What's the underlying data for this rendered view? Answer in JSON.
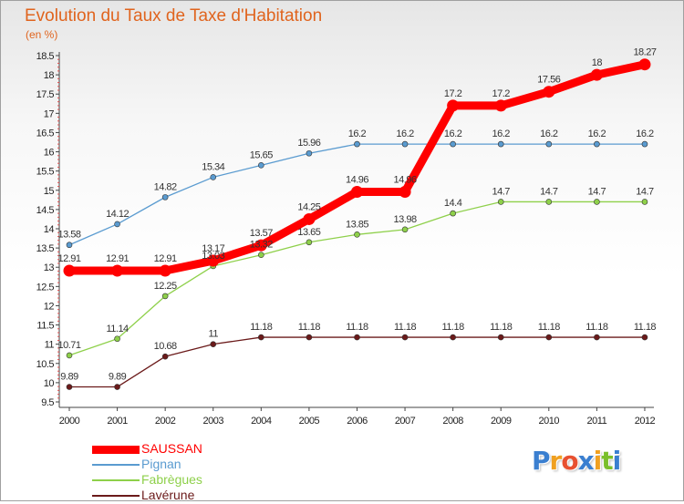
{
  "header": {
    "title": "Evolution du Taux de Taxe d'Habitation",
    "unit": "(en %)"
  },
  "logo": {
    "text": "Proxiti",
    "colors": [
      "#3a7fd0",
      "#f0a020",
      "#e85030",
      "#3a7fd0",
      "#f0a020",
      "#7abf2a",
      "#3a7fd0"
    ]
  },
  "chart_data": {
    "type": "line",
    "title": "Evolution du Taux de Taxe d'Habitation",
    "ylabel": "(en %)",
    "xlabel": "",
    "x": [
      "2000",
      "2001",
      "2002",
      "2003",
      "2004",
      "2005",
      "2006",
      "2007",
      "2008",
      "2009",
      "2010",
      "2011",
      "2012"
    ],
    "ylim": [
      9.5,
      18.5
    ],
    "yticks": [
      "9.5",
      "10",
      "10.5",
      "11",
      "11.5",
      "12",
      "12.5",
      "13",
      "13.5",
      "14",
      "14.5",
      "15",
      "15.5",
      "16",
      "16.5",
      "17",
      "17.5",
      "18",
      "18.5"
    ],
    "grid": false,
    "legend_position": "bottom-left",
    "series": [
      {
        "name": "SAUSSAN",
        "color": "#ff0000",
        "values": [
          12.91,
          12.91,
          12.91,
          13.17,
          13.57,
          14.25,
          14.96,
          14.96,
          17.2,
          17.2,
          17.56,
          18,
          18.27
        ],
        "labels": [
          "12.91",
          "12.91",
          "12.91",
          "13.17",
          "13.57",
          "14.25",
          "14.96",
          "14.96",
          "17.2",
          "17.2",
          "17.56",
          "18",
          "18.27"
        ]
      },
      {
        "name": "Pignan",
        "color": "#5a9bd0",
        "values": [
          13.58,
          14.12,
          14.82,
          15.34,
          15.65,
          15.96,
          16.2,
          16.2,
          16.2,
          16.2,
          16.2,
          16.2,
          16.2
        ],
        "labels": [
          "13.58",
          "14.12",
          "14.82",
          "15.34",
          "15.65",
          "15.96",
          "16.2",
          "16.2",
          "16.2",
          "16.2",
          "16.2",
          "16.2",
          "16.2"
        ]
      },
      {
        "name": "Fabrègues",
        "color": "#8ed04a",
        "values": [
          10.71,
          11.14,
          12.25,
          13.03,
          13.32,
          13.65,
          13.85,
          13.98,
          14.4,
          14.7,
          14.7,
          14.7,
          14.7
        ],
        "labels": [
          "10.71",
          "11.14",
          "12.25",
          "13.03",
          "13.32",
          "13.65",
          "13.85",
          "13.98",
          "14.4",
          "14.7",
          "14.7",
          "14.7",
          "14.7"
        ]
      },
      {
        "name": "Lavérune",
        "color": "#6b1a1a",
        "values": [
          9.89,
          9.89,
          10.68,
          11,
          11.18,
          11.18,
          11.18,
          11.18,
          11.18,
          11.18,
          11.18,
          11.18,
          11.18
        ],
        "labels": [
          "9.89",
          "9.89",
          "10.68",
          "11",
          "11.18",
          "11.18",
          "11.18",
          "11.18",
          "11.18",
          "11.18",
          "11.18",
          "11.18",
          "11.18"
        ]
      }
    ]
  }
}
